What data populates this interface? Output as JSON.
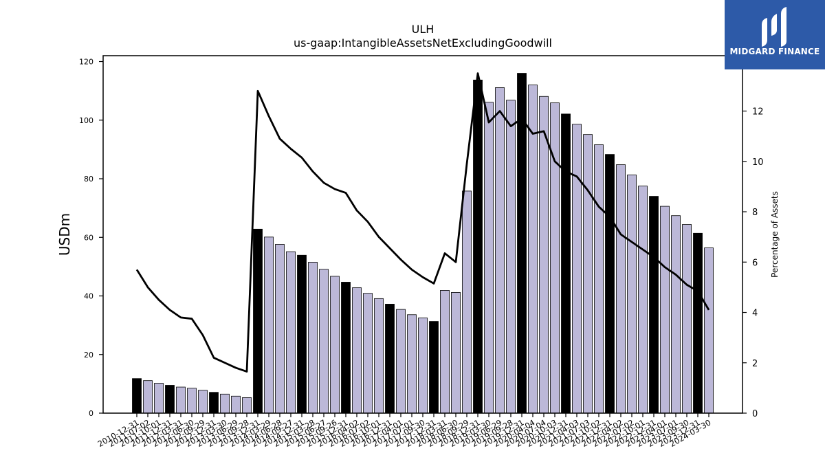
{
  "chart_data": {
    "type": "bar",
    "title": "ULH",
    "subtitle": "us-gaap:IntangibleAssetsNetExcludingGoodwill",
    "ylabel": "USDm",
    "y2label": "Percentage of Assets",
    "ylim": [
      0,
      122
    ],
    "y2lim": [
      0,
      14.2
    ],
    "yticks": [
      "0",
      "20",
      "40",
      "60",
      "80",
      "100",
      "120"
    ],
    "y2ticks": [
      "0",
      "2",
      "4",
      "6",
      "8",
      "10",
      "12"
    ],
    "categories": [
      "2010-12-31",
      "2011-07-02",
      "2011-10-01",
      "2011-12-31",
      "2012-03-31",
      "2012-06-30",
      "2012-09-29",
      "2012-12-31",
      "2013-03-30",
      "2013-06-29",
      "2013-09-28",
      "2013-12-31",
      "2014-03-29",
      "2014-06-28",
      "2014-09-27",
      "2014-12-31",
      "2015-03-28",
      "2015-06-27",
      "2015-09-26",
      "2015-12-31",
      "2016-04-02",
      "2016-07-02",
      "2016-10-01",
      "2016-12-31",
      "2017-04-01",
      "2017-07-01",
      "2017-09-30",
      "2017-12-31",
      "2018-03-31",
      "2018-06-30",
      "2018-09-29",
      "2018-12-31",
      "2019-03-30",
      "2019-06-29",
      "2019-09-28",
      "2019-12-31",
      "2020-04-04",
      "2020-07-04",
      "2020-10-03",
      "2020-12-31",
      "2021-04-03",
      "2021-07-03",
      "2021-10-02",
      "2021-12-31",
      "2022-04-02",
      "2022-07-02",
      "2022-10-01",
      "2022-12-31",
      "2023-04-01",
      "2023-07-01",
      "2023-09-30",
      "2023-12-31",
      "2024-03-30"
    ],
    "series": [
      {
        "type": "bar",
        "values": [
          11.8,
          11.1,
          10.2,
          9.5,
          8.9,
          8.5,
          7.8,
          7.1,
          6.5,
          5.8,
          5.3,
          62.8,
          60.1,
          57.6,
          55.1,
          53.9,
          51.5,
          49.1,
          46.7,
          44.7,
          42.8,
          40.9,
          39.1,
          37.2,
          35.4,
          33.6,
          32.5,
          31.3,
          41.9,
          41.2,
          75.8,
          113.7,
          106.1,
          111.1,
          106.8,
          116.0,
          112.0,
          108.1,
          105.9,
          102.1,
          98.6,
          95.1,
          91.6,
          88.3,
          84.8,
          81.3,
          77.5,
          74.0,
          70.6,
          67.4,
          64.4,
          61.4,
          56.4
        ],
        "annual_color": "#000000",
        "quarter_color": "#bcb8d8"
      },
      {
        "type": "line",
        "axis": "right",
        "color": "#000000",
        "values": [
          5.7,
          5.0,
          4.5,
          4.1,
          3.8,
          3.75,
          3.1,
          2.2,
          2.0,
          1.8,
          1.65,
          12.8,
          11.8,
          10.9,
          10.5,
          10.15,
          9.6,
          9.15,
          8.9,
          8.75,
          8.05,
          7.6,
          7.0,
          6.55,
          6.1,
          5.7,
          5.4,
          5.15,
          6.35,
          6.0,
          9.9,
          13.5,
          11.55,
          12.0,
          11.4,
          11.7,
          11.1,
          11.2,
          10.0,
          9.6,
          9.4,
          8.85,
          8.2,
          7.8,
          7.1,
          6.8,
          6.5,
          6.2,
          5.8,
          5.5,
          5.1,
          4.85,
          4.1
        ]
      }
    ],
    "annual_indices": [
      0,
      3,
      7,
      11,
      15,
      19,
      23,
      27,
      31,
      35,
      39,
      43,
      47,
      51
    ],
    "grid": false,
    "legend": "none"
  },
  "logo": {
    "text": "MIDGARD FINANCE"
  }
}
